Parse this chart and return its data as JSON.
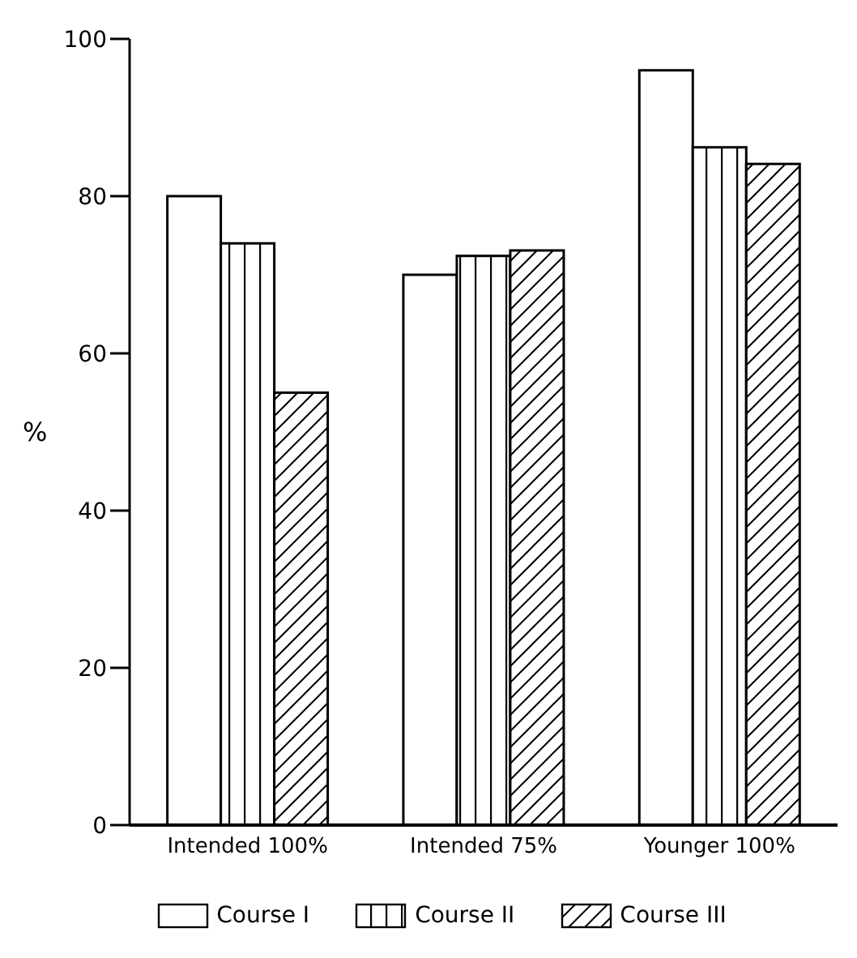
{
  "chart_data": {
    "type": "bar",
    "ylabel": "%",
    "categories": [
      "Intended 100%",
      "Intended 75%",
      "Younger 100%"
    ],
    "series": [
      {
        "name": "Course I",
        "color": "#000000",
        "values": [
          80,
          70,
          96
        ]
      },
      {
        "name": "Course II",
        "color": "#000000",
        "values": [
          74,
          72.4,
          86.2
        ]
      },
      {
        "name": "Course III",
        "color": "#000000",
        "values": [
          55,
          73.1,
          84.1
        ]
      }
    ],
    "ylim": [
      0,
      100
    ],
    "yticks": [
      0,
      20,
      40,
      60,
      80,
      100
    ],
    "grid": false,
    "legend": "bottom"
  }
}
